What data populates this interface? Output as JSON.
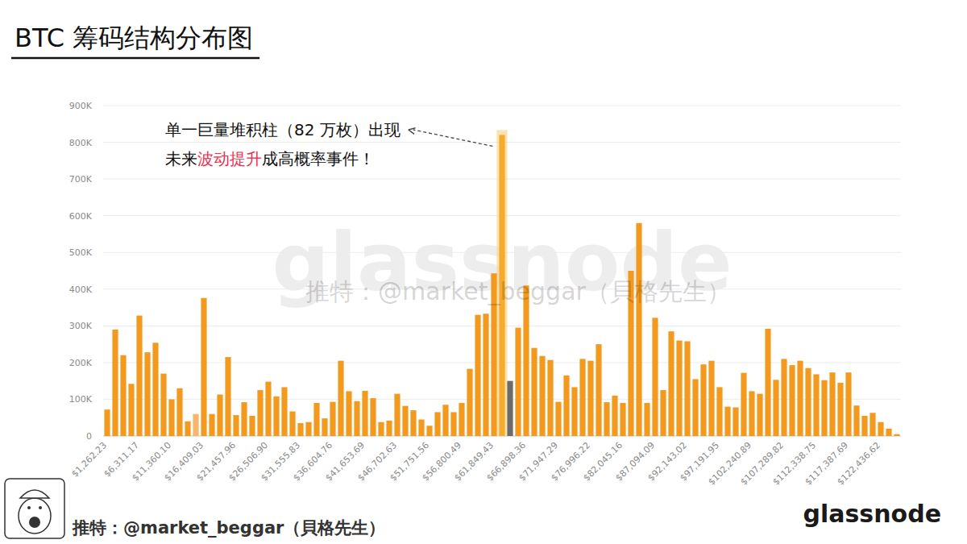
{
  "chart_data": {
    "type": "bar",
    "title": "BTC 筹码结构分布图",
    "annotation": [
      [
        "单一巨量堆积柱（82 万枚）出现"
      ],
      [
        "未来",
        "波动提升",
        "成高概率事件！"
      ]
    ],
    "watermark": "glassnode",
    "watermark_credit": "推特：@market_beggar（貝格先生）",
    "credit": "推特：@market_beggar（貝格先生）",
    "source": "glassnode",
    "categories": [
      "$1,262.23",
      null,
      null,
      null,
      "$6,311.17",
      null,
      null,
      null,
      "$11,360.10",
      null,
      null,
      null,
      "$16,409.03",
      null,
      null,
      null,
      "$21,457.96",
      null,
      null,
      null,
      "$26,506.90",
      null,
      null,
      null,
      "$31,555.83",
      null,
      null,
      null,
      "$36,604.76",
      null,
      null,
      null,
      "$41,653.69",
      null,
      null,
      null,
      "$46,702.63",
      null,
      null,
      null,
      "$51,751.56",
      null,
      null,
      null,
      "$56,800.49",
      null,
      null,
      null,
      "$61,849.43",
      null,
      null,
      null,
      "$66,898.36",
      null,
      null,
      null,
      "$71,947.29",
      null,
      null,
      null,
      "$76,996.22",
      null,
      null,
      null,
      "$82,045.16",
      null,
      null,
      null,
      "$87,094.09",
      null,
      null,
      null,
      "$92,143.02",
      null,
      null,
      null,
      "$97,191.95",
      null,
      null,
      null,
      "$102,240.89",
      null,
      null,
      null,
      "$107,289.82",
      null,
      null,
      null,
      "$112,338.75",
      null,
      null,
      null,
      "$117,387.69",
      null,
      null,
      null,
      "$122,436.62",
      null,
      null
    ],
    "values": [
      72000,
      290000,
      220000,
      142000,
      328000,
      228000,
      254000,
      170000,
      100000,
      130000,
      40000,
      60000,
      376000,
      60000,
      113000,
      215000,
      57000,
      92000,
      55000,
      125000,
      148000,
      108000,
      133000,
      67000,
      35000,
      38000,
      90000,
      48000,
      93000,
      205000,
      122000,
      95000,
      123000,
      103000,
      38000,
      42000,
      115000,
      82000,
      70000,
      45000,
      28000,
      65000,
      85000,
      65000,
      90000,
      183000,
      330000,
      333000,
      443000,
      820000,
      150000,
      295000,
      410000,
      240000,
      218000,
      207000,
      93000,
      165000,
      133000,
      210000,
      205000,
      250000,
      92000,
      110000,
      90000,
      450000,
      580000,
      90000,
      322000,
      125000,
      285000,
      260000,
      258000,
      155000,
      195000,
      205000,
      133000,
      80000,
      78000,
      172000,
      122000,
      115000,
      292000,
      153000,
      210000,
      193000,
      205000,
      185000,
      168000,
      152000,
      173000,
      145000,
      173000,
      83000,
      55000,
      63000,
      38000,
      20000,
      5000
    ],
    "colors": [
      "#f39a1e",
      "#f39a1e",
      "#f39a1e",
      "#f39a1e",
      "#f39a1e",
      "#f39a1e",
      "#f39a1e",
      "#f39a1e",
      "#f39a1e",
      "#f39a1e",
      "#f39a1e",
      "#f7b56e",
      "#f39a1e",
      "#f39a1e",
      "#f39a1e",
      "#f39a1e",
      "#f39a1e",
      "#f39a1e",
      "#f39a1e",
      "#f39a1e",
      "#f39a1e",
      "#f39a1e",
      "#f39a1e",
      "#f39a1e",
      "#f39a1e",
      "#f39a1e",
      "#f39a1e",
      "#f39a1e",
      "#f39a1e",
      "#f39a1e",
      "#f39a1e",
      "#f39a1e",
      "#f39a1e",
      "#f39a1e",
      "#f39a1e",
      "#f39a1e",
      "#f39a1e",
      "#f39a1e",
      "#f39a1e",
      "#f39a1e",
      "#f39a1e",
      "#f39a1e",
      "#f39a1e",
      "#f39a1e",
      "#f39a1e",
      "#f39a1e",
      "#f39a1e",
      "#f39a1e",
      "#f39a1e",
      "#f5ab2c",
      "#6b6b6b",
      "#f39a1e",
      "#f39a1e",
      "#f39a1e",
      "#f39a1e",
      "#f39a1e",
      "#f39a1e",
      "#f39a1e",
      "#f39a1e",
      "#f39a1e",
      "#f39a1e",
      "#f39a1e",
      "#f39a1e",
      "#f39a1e",
      "#f39a1e",
      "#f39a1e",
      "#f39a1e",
      "#f39a1e",
      "#f39a1e",
      "#f39a1e",
      "#f39a1e",
      "#f39a1e",
      "#f39a1e",
      "#f39a1e",
      "#f39a1e",
      "#f39a1e",
      "#f39a1e",
      "#f39a1e",
      "#f39a1e",
      "#f39a1e",
      "#f39a1e",
      "#f39a1e",
      "#f39a1e",
      "#f39a1e",
      "#f39a1e",
      "#f39a1e",
      "#f39a1e",
      "#f39a1e",
      "#f39a1e",
      "#f39a1e",
      "#f39a1e",
      "#f39a1e",
      "#f39a1e",
      "#f39a1e",
      "#f39a1e",
      "#f39a1e",
      "#f39a1e",
      "#f39a1e",
      "#f39a1e"
    ],
    "ylim": [
      0,
      900000
    ],
    "yticks": [
      0,
      {
        "value": 100000,
        "label": "100K"
      },
      {
        "value": 200000,
        "label": "200K"
      },
      {
        "value": 300000,
        "label": "300K"
      },
      {
        "value": 400000,
        "label": "400K"
      },
      {
        "value": 500000,
        "label": "500K"
      },
      {
        "value": 600000,
        "label": "600K"
      },
      {
        "value": 700000,
        "label": "700K"
      },
      {
        "value": 800000,
        "label": "800K"
      },
      {
        "value": 900000,
        "label": "900K"
      }
    ],
    "grid": true
  }
}
